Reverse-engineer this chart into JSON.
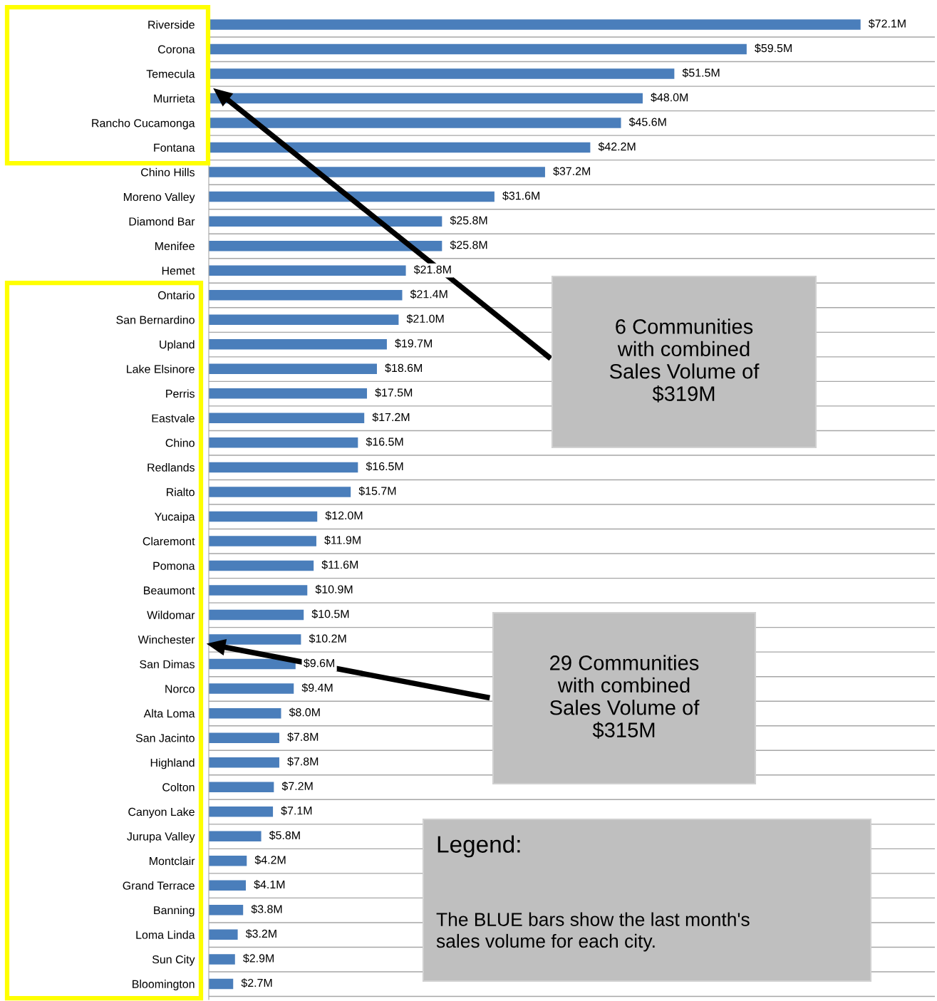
{
  "chart_data": {
    "type": "bar",
    "orientation": "horizontal",
    "color": "#4a7ebb",
    "grid": "y",
    "categories": [
      "Riverside",
      "Corona",
      "Temecula",
      "Murrieta",
      "Rancho Cucamonga",
      "Fontana",
      "Chino Hills",
      "Moreno Valley",
      "Diamond Bar",
      "Menifee",
      "Hemet",
      "Ontario",
      "San Bernardino",
      "Upland",
      "Lake Elsinore",
      "Perris",
      "Eastvale",
      "Chino",
      "Redlands",
      "Rialto",
      "Yucaipa",
      "Claremont",
      "Pomona",
      "Beaumont",
      "Wildomar",
      "Winchester",
      "San Dimas",
      "Norco",
      "Alta Loma",
      "San Jacinto",
      "Highland",
      "Colton",
      "Canyon Lake",
      "Jurupa Valley",
      "Montclair",
      "Grand Terrace",
      "Banning",
      "Loma Linda",
      "Sun City",
      "Bloomington"
    ],
    "values": [
      72.1,
      59.5,
      51.5,
      48.0,
      45.6,
      42.2,
      37.2,
      31.6,
      25.8,
      25.8,
      21.8,
      21.4,
      21.0,
      19.7,
      18.6,
      17.5,
      17.2,
      16.5,
      16.5,
      15.7,
      12.0,
      11.9,
      11.6,
      10.9,
      10.5,
      10.2,
      9.6,
      9.4,
      8.0,
      7.8,
      7.8,
      7.2,
      7.1,
      5.8,
      4.2,
      4.1,
      3.8,
      3.2,
      2.9,
      2.7
    ],
    "value_labels": [
      "$72.1M",
      "$59.5M",
      "$51.5M",
      "$48.0M",
      "$45.6M",
      "$42.2M",
      "$37.2M",
      "$31.6M",
      "$25.8M",
      "$25.8M",
      "$21.8M",
      "$21.4M",
      "$21.0M",
      "$19.7M",
      "$18.6M",
      "$17.5M",
      "$17.2M",
      "$16.5M",
      "$16.5M",
      "$15.7M",
      "$12.0M",
      "$11.9M",
      "$11.6M",
      "$10.9M",
      "$10.5M",
      "$10.2M",
      "$9.6M",
      "$9.4M",
      "$8.0M",
      "$7.8M",
      "$7.8M",
      "$7.2M",
      "$7.1M",
      "$5.8M",
      "$4.2M",
      "$4.1M",
      "$3.8M",
      "$3.2M",
      "$2.9M",
      "$2.7M"
    ],
    "annotations": [
      "6 Communities\nwith combined\nSales Volume of\n$319M",
      "29 Communities\nwith combined\nSales Volume of\n$315M",
      "Legend:",
      "The BLUE bars show the last month's\nsales volume for each city."
    ]
  }
}
